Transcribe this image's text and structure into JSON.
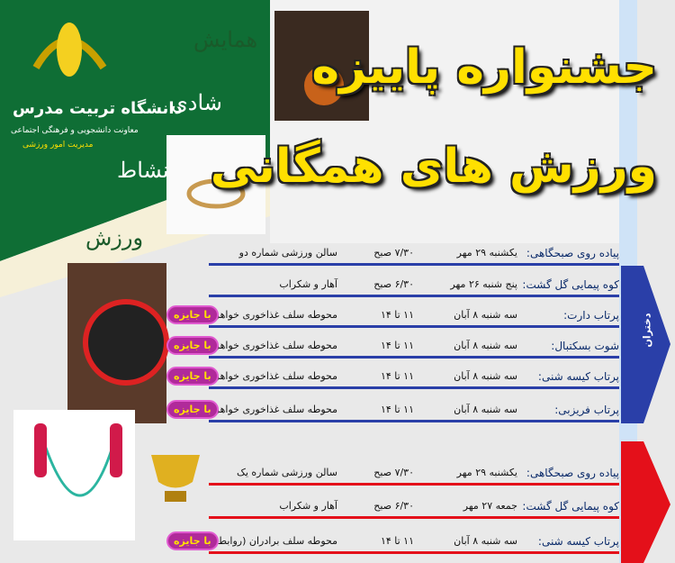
{
  "logo": {
    "name": "دانشگاه تربیت مدرس",
    "line1": "معاونت دانشجویی و فرهنگی اجتماعی",
    "line2": "مدیریت امور ورزشی"
  },
  "words": [
    "همایش",
    "شادی",
    "نشاط",
    "ورزش"
  ],
  "title": {
    "line1": "جشنواره پاییزه",
    "line2": "ورزش های همگانی"
  },
  "girls": {
    "label": "دختران",
    "rows": [
      {
        "activity": "پیاده روی صبحگاهی:",
        "date": "یکشنبه ۲۹ مهر",
        "time": "۷/۳۰ صبح",
        "place": "سالن ورزشی شماره دو"
      },
      {
        "activity": "کوه پیمایی گل گشت:",
        "date": "پنج شنبه ۲۶ مهر",
        "time": "۶/۳۰ صبح",
        "place": "آهار و شکراب"
      },
      {
        "activity": "پرتاب دارت:",
        "date": "سه شنبه ۸ آبان",
        "time": "۱۱ تا ۱۴",
        "place": "محوطه سلف غذاخوری خواهران",
        "prize": "با جایزه"
      },
      {
        "activity": "شوت بسکتبال:",
        "date": "سه شنبه ۸ آبان",
        "time": "۱۱ تا ۱۴",
        "place": "محوطه سلف غذاخوری خواهران",
        "prize": "با جایزه"
      },
      {
        "activity": "پرتاب کیسه شنی:",
        "date": "سه شنبه ۸ آبان",
        "time": "۱۱ تا ۱۴",
        "place": "محوطه سلف غذاخوری خواهران",
        "prize": "با جایزه"
      },
      {
        "activity": "پرتاب فریزبی:",
        "date": "سه شنبه ۸ آبان",
        "time": "۱۱ تا ۱۴",
        "place": "محوطه سلف غذاخوری خواهران",
        "prize": "با جایزه"
      }
    ]
  },
  "boys": {
    "rows": [
      {
        "activity": "پیاده روی صبحگاهی:",
        "date": "یکشنبه ۲۹ مهر",
        "time": "۷/۳۰ صبح",
        "place": "سالن ورزشی شماره یک"
      },
      {
        "activity": "کوه پیمایی گل گشت:",
        "date": "جمعه ۲۷ مهر",
        "time": "۶/۳۰ صبح",
        "place": "آهار و شکراب"
      },
      {
        "activity": "پرتاب کیسه شنی:",
        "date": "سه شنبه ۸ آبان",
        "time": "۱۱ تا ۱۴",
        "place": "محوطه سلف برادران (روابط عمومی)",
        "prize": "با جایزه"
      }
    ]
  }
}
